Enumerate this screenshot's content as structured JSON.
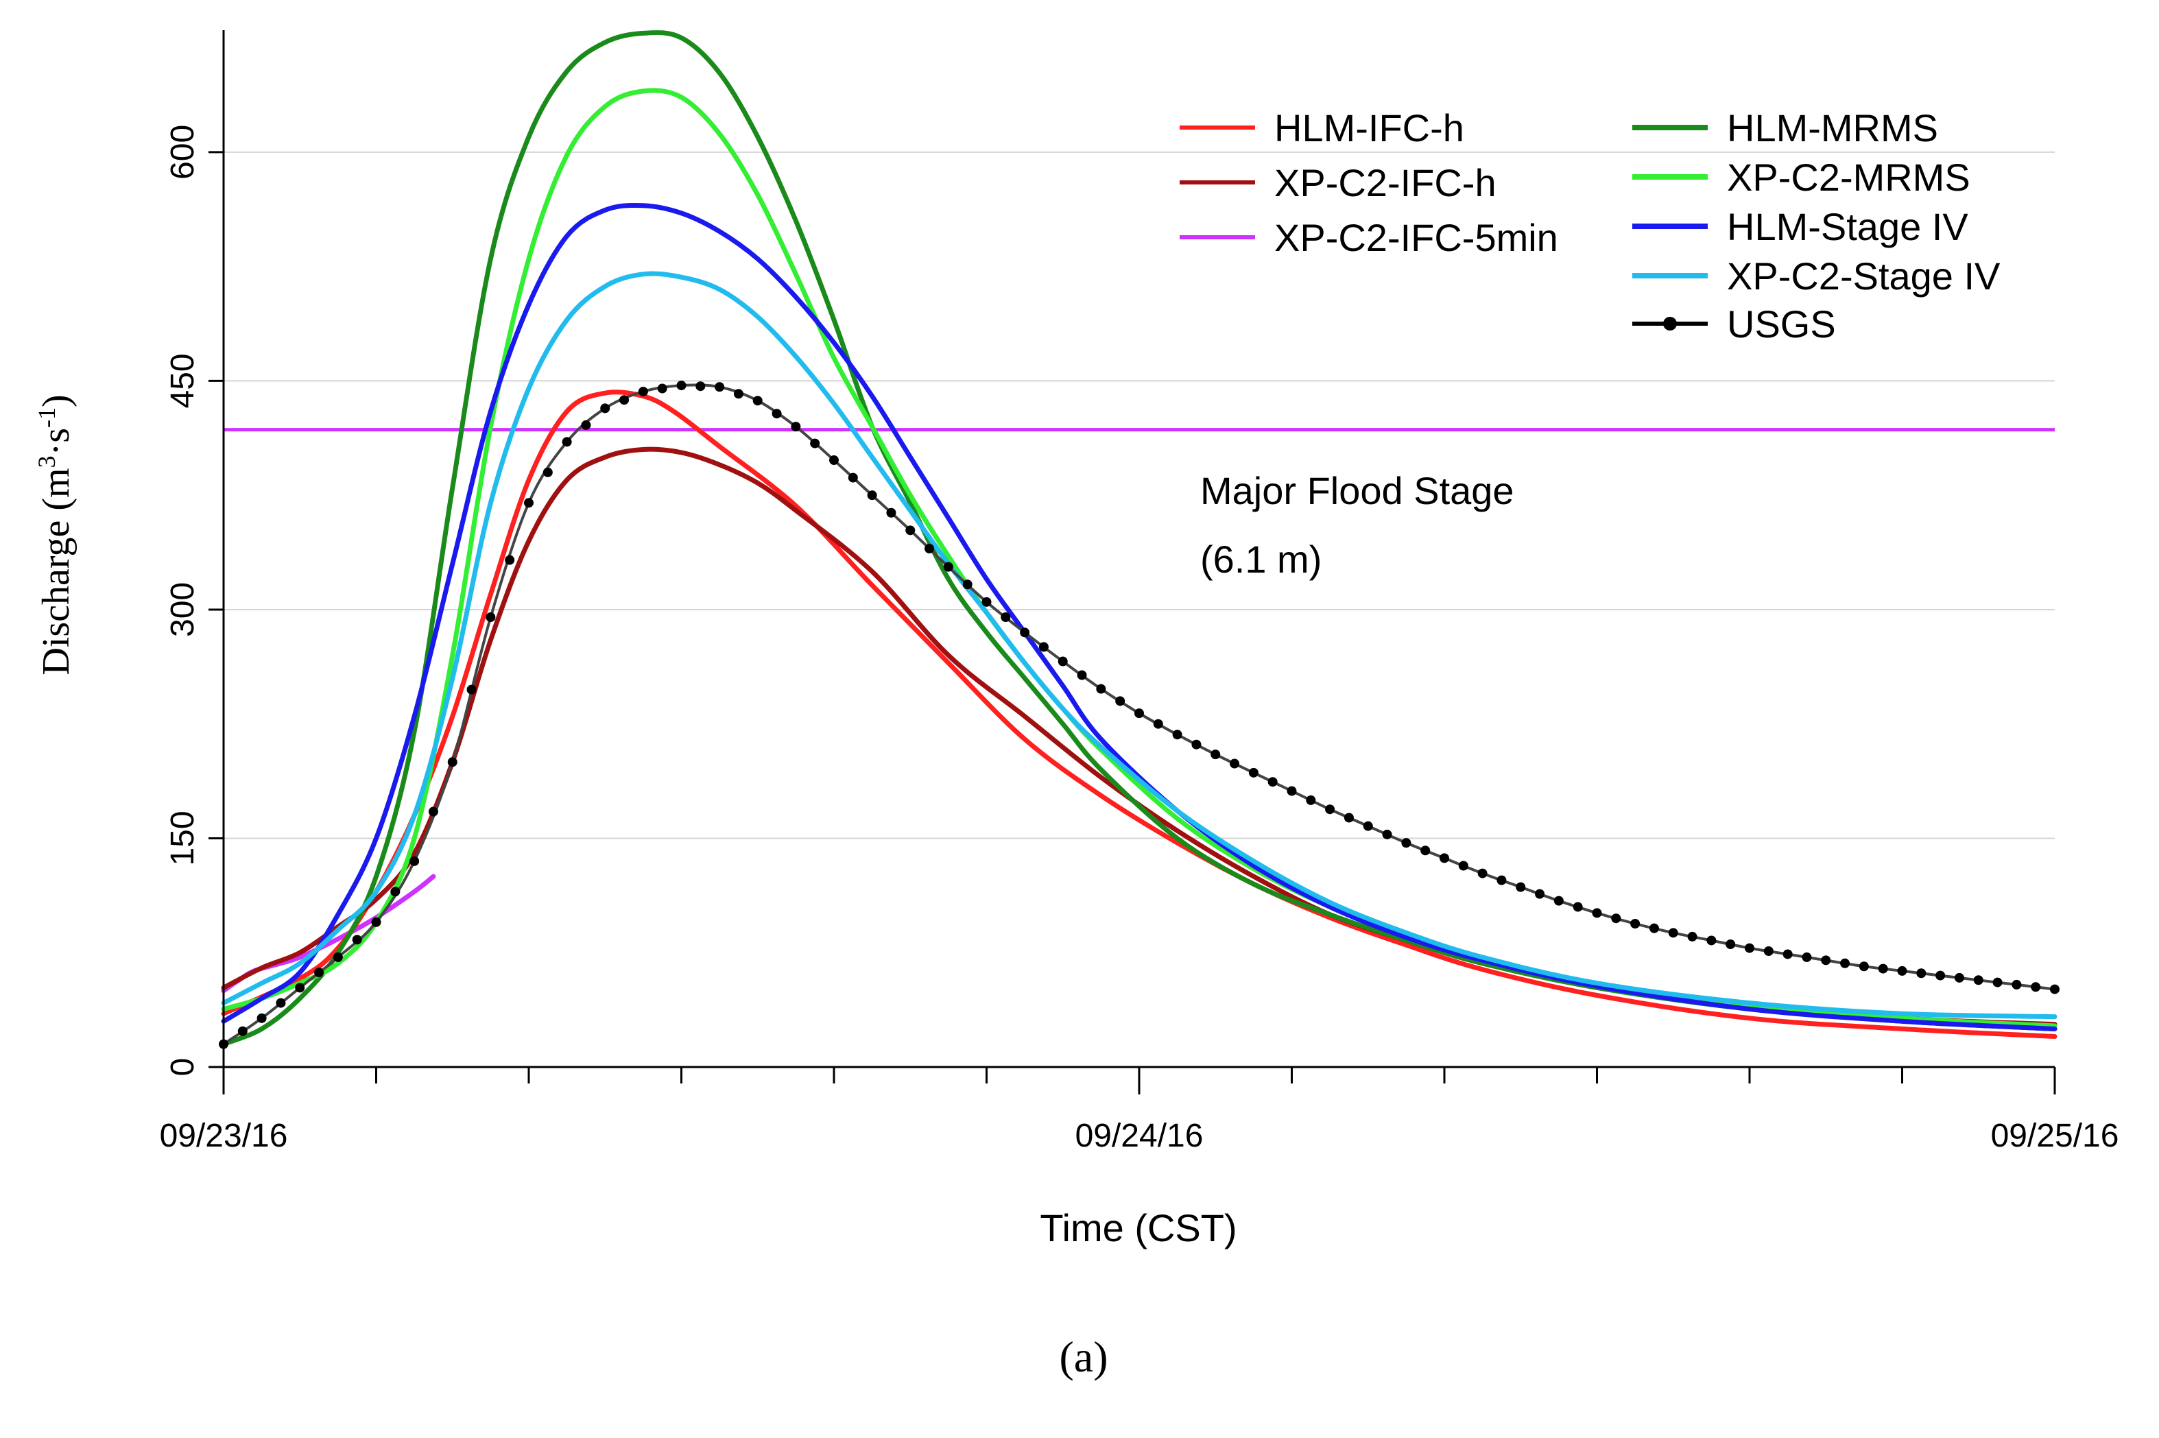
{
  "chart_data": {
    "type": "line",
    "xlabel": "Time (CST)",
    "ylabel": "Discharge (m³·s⁻¹)",
    "ylabel_parts": {
      "base": "Discharge (m",
      "sup1": "3",
      "mid": "·s",
      "sup2": "-1",
      "end": ")"
    },
    "x_ticks": [
      "09/23/16",
      "09/24/16",
      "09/25/16"
    ],
    "x_range_hours": [
      0,
      48
    ],
    "y_ticks": [
      0,
      150,
      300,
      450,
      600
    ],
    "ylim": [
      0,
      680
    ],
    "grid": "horizontal",
    "legend_position": "top-right",
    "panel_label": "(a)",
    "annotation": {
      "line1": "Major Flood Stage",
      "line2": "(6.1 m)"
    },
    "flood_stage": {
      "value": 418,
      "color": "#cc33ff"
    },
    "series": [
      {
        "name": "HLM-IFC-h",
        "color": "#ff2020",
        "x": [
          0,
          2,
          3,
          4,
          5,
          6,
          7,
          8,
          9,
          10,
          11,
          11.8,
          13,
          15,
          17,
          19,
          21,
          23,
          25,
          27,
          29,
          31,
          33,
          36,
          40,
          44,
          48
        ],
        "y": [
          35,
          58,
          78,
          115,
          165,
          230,
          310,
          385,
          430,
          442,
          440,
          430,
          407,
          368,
          316,
          265,
          215,
          178,
          147,
          120,
          98,
          80,
          64,
          47,
          32,
          25,
          20
        ]
      },
      {
        "name": "XP-C2-IFC-h",
        "color": "#a01010",
        "x": [
          0,
          1,
          2,
          3,
          4,
          5,
          6,
          7,
          8,
          9,
          10,
          11,
          12,
          13,
          14,
          15,
          17,
          19,
          21,
          23,
          25,
          27,
          29,
          31,
          33,
          36,
          40,
          44,
          48
        ],
        "y": [
          52,
          65,
          75,
          92,
          110,
          140,
          200,
          280,
          345,
          385,
          400,
          405,
          403,
          395,
          383,
          365,
          325,
          270,
          230,
          190,
          155,
          125,
          100,
          83,
          68,
          53,
          40,
          32,
          28
        ]
      },
      {
        "name": "XP-C2-IFC-5min",
        "color": "#cc33ff",
        "x": [
          0,
          0.4,
          0.8,
          1.5,
          2,
          3,
          4,
          5,
          5.5
        ],
        "y": [
          50,
          57,
          63,
          68,
          72,
          84,
          98,
          115,
          125
        ]
      },
      {
        "name": "HLM-MRMS",
        "color": "#1a8a1a",
        "x": [
          0,
          1,
          2,
          3,
          4,
          5,
          6,
          7,
          8,
          9,
          10,
          11,
          12,
          13,
          14,
          15,
          16,
          17,
          18,
          19,
          20,
          21,
          22,
          23,
          25,
          27,
          29,
          31,
          33,
          36,
          40,
          44,
          48
        ],
        "y": [
          15,
          25,
          45,
          75,
          125,
          220,
          380,
          530,
          610,
          653,
          672,
          678,
          675,
          652,
          610,
          555,
          490,
          420,
          370,
          320,
          285,
          255,
          225,
          195,
          150,
          120,
          100,
          83,
          68,
          52,
          38,
          30,
          25
        ]
      },
      {
        "name": "XP-C2-MRMS",
        "color": "#33ee33",
        "x": [
          0,
          1,
          2,
          3,
          4,
          5,
          6,
          7,
          8,
          9,
          10,
          11,
          12,
          13,
          14,
          15,
          16,
          17,
          18,
          19,
          20,
          21,
          22,
          23,
          25,
          27,
          29,
          31,
          33,
          36,
          40,
          44,
          48
        ],
        "y": [
          38,
          45,
          55,
          68,
          95,
          150,
          270,
          420,
          530,
          598,
          630,
          640,
          636,
          612,
          572,
          520,
          465,
          420,
          375,
          335,
          298,
          265,
          235,
          208,
          163,
          130,
          105,
          86,
          70,
          54,
          40,
          32,
          27
        ]
      },
      {
        "name": "HLM-Stage IV",
        "color": "#1a1aee",
        "x": [
          0,
          1,
          2,
          3,
          4,
          5,
          6,
          7,
          8,
          9,
          10,
          11,
          12,
          13,
          14,
          15,
          16,
          17,
          18,
          19,
          20,
          21,
          22,
          23,
          25,
          27,
          29,
          31,
          33,
          36,
          40,
          44,
          48
        ],
        "y": [
          30,
          45,
          62,
          100,
          150,
          230,
          330,
          430,
          500,
          545,
          562,
          565,
          560,
          548,
          530,
          505,
          475,
          440,
          400,
          360,
          320,
          285,
          250,
          215,
          168,
          132,
          105,
          85,
          70,
          53,
          38,
          30,
          25
        ]
      },
      {
        "name": "XP-C2-Stage IV",
        "color": "#22bbee",
        "x": [
          0,
          1,
          2,
          3,
          4,
          5,
          6,
          7,
          8,
          9,
          10,
          11,
          12,
          13,
          14,
          15,
          16,
          17,
          18,
          19,
          20,
          21,
          22,
          23,
          25,
          27,
          29,
          31,
          33,
          36,
          40,
          44,
          48
        ],
        "y": [
          42,
          55,
          68,
          90,
          115,
          165,
          255,
          370,
          445,
          490,
          512,
          520,
          518,
          510,
          492,
          466,
          435,
          400,
          365,
          330,
          298,
          265,
          235,
          210,
          168,
          135,
          108,
          88,
          72,
          55,
          42,
          35,
          33
        ]
      },
      {
        "name": "USGS",
        "color": "#000000",
        "markers": true,
        "x": [
          0,
          1,
          2,
          3,
          4,
          5,
          6,
          7,
          8,
          9,
          10,
          11,
          12,
          13,
          14,
          15,
          16,
          17,
          18,
          19,
          20,
          21,
          22,
          23,
          24,
          25,
          26,
          27,
          28,
          29,
          30,
          31,
          32,
          33,
          34,
          35,
          36,
          37,
          38,
          39,
          40,
          41,
          42,
          43,
          44,
          45,
          46,
          47,
          48
        ],
        "y": [
          15,
          32,
          52,
          72,
          95,
          135,
          200,
          295,
          370,
          410,
          432,
          443,
          447,
          446,
          437,
          420,
          398,
          375,
          352,
          328,
          305,
          285,
          266,
          248,
          232,
          218,
          205,
          193,
          181,
          169,
          158,
          147,
          137,
          127,
          118,
          109,
          101,
          94,
          88,
          83,
          78,
          74,
          70,
          66,
          63,
          60,
          57,
          54,
          51
        ]
      }
    ]
  }
}
